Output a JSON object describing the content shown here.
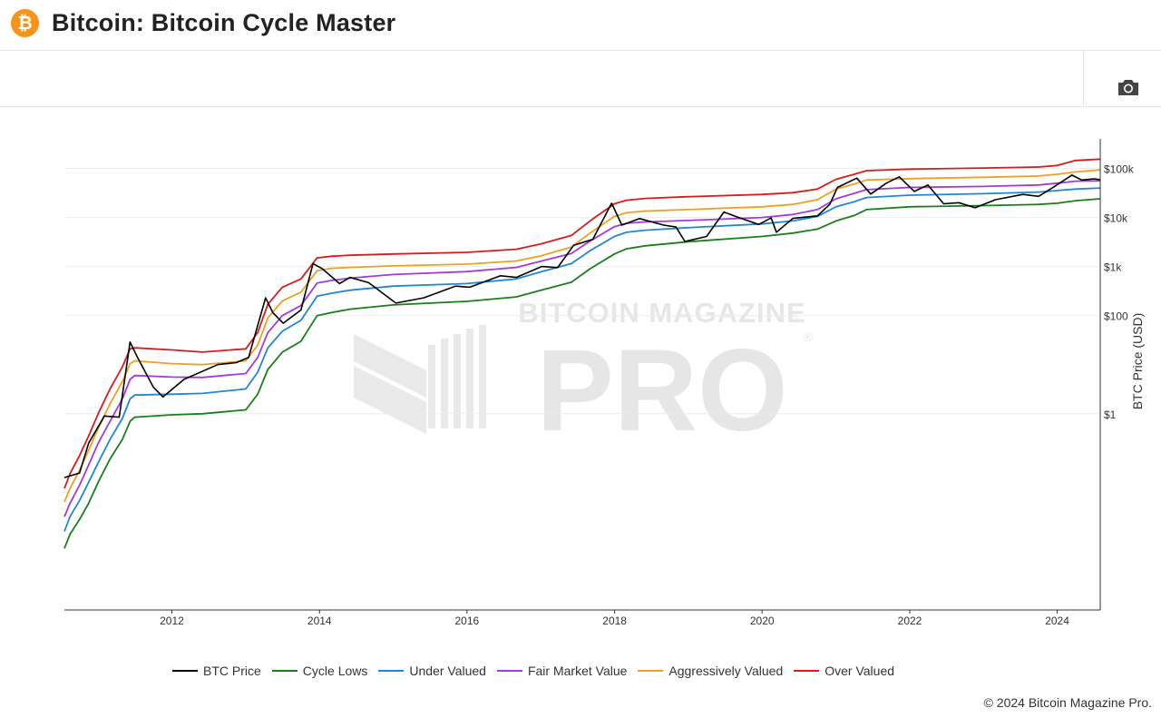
{
  "header": {
    "title": "Bitcoin: Bitcoin Cycle Master",
    "logo_symbol": "₿",
    "logo_icon": "bitcoin-icon"
  },
  "toolbar": {
    "camera_icon": "camera-icon"
  },
  "watermark": {
    "line1": "BITCOIN MAGAZINE",
    "line2": "PRO",
    "registered": "®"
  },
  "footer": {
    "copyright": "© 2024 Bitcoin Magazine Pro."
  },
  "colors": {
    "btc_price": "#000000",
    "cycle_lows": "#1a7f1a",
    "under_valued": "#1f87d6",
    "fair_market": "#a23cd6",
    "aggressive": "#f0a020",
    "over_valued": "#d81b1b",
    "brand": "#f7931a"
  },
  "chart_data": {
    "type": "line",
    "title": "Bitcoin: Bitcoin Cycle Master",
    "xlabel": "",
    "ylabel": "BTC Price (USD)",
    "y_scale": "log",
    "y_side": "right",
    "y_ticks": [
      1,
      100,
      1000,
      10000,
      100000
    ],
    "y_tick_labels": [
      "$1",
      "$100",
      "$1k",
      "$10k",
      "$100k"
    ],
    "x_ticks": [
      2012,
      2014,
      2016,
      2018,
      2020,
      2022,
      2024
    ],
    "x_tick_labels": [
      "2012",
      "2014",
      "2016",
      "2018",
      "2020",
      "2022",
      "2024"
    ],
    "xlim": [
      "2010-07-18",
      "2024-08-01"
    ],
    "ylim": [
      0.0001,
      400000
    ],
    "grid": true,
    "legend_position": "bottom",
    "series": [
      {
        "name": "BTC Price",
        "key": "btc_price",
        "x": [
          "2010-07-18",
          "2010-10-01",
          "2010-11-15",
          "2011-02-01",
          "2011-04-15",
          "2011-06-08",
          "2011-07-15",
          "2011-10-01",
          "2011-11-18",
          "2012-03-01",
          "2012-08-15",
          "2012-11-15",
          "2013-01-15",
          "2013-04-09",
          "2013-05-15",
          "2013-07-05",
          "2013-10-01",
          "2013-11-30",
          "2014-01-15",
          "2014-04-10",
          "2014-06-01",
          "2014-09-01",
          "2015-01-14",
          "2015-06-01",
          "2015-11-05",
          "2016-01-15",
          "2016-06-15",
          "2016-09-01",
          "2017-01-05",
          "2017-03-25",
          "2017-06-12",
          "2017-09-15",
          "2017-12-17",
          "2018-02-06",
          "2018-05-05",
          "2018-09-01",
          "2018-11-01",
          "2018-12-15",
          "2019-04-01",
          "2019-06-26",
          "2019-09-01",
          "2019-12-15",
          "2020-02-15",
          "2020-03-12",
          "2020-06-01",
          "2020-10-01",
          "2020-12-01",
          "2021-01-08",
          "2021-04-14",
          "2021-06-22",
          "2021-09-07",
          "2021-11-10",
          "2022-01-24",
          "2022-04-01",
          "2022-06-18",
          "2022-09-01",
          "2022-11-21",
          "2023-03-01",
          "2023-07-15",
          "2023-10-01",
          "2023-12-15",
          "2024-03-14",
          "2024-05-01",
          "2024-07-01",
          "2024-08-01"
        ],
        "values": [
          0.05,
          0.062,
          0.25,
          0.9,
          0.85,
          29,
          14,
          3.5,
          2.2,
          5,
          10,
          11,
          14,
          230,
          115,
          70,
          130,
          1150,
          900,
          450,
          600,
          470,
          180,
          230,
          400,
          380,
          650,
          600,
          1000,
          950,
          2700,
          3600,
          19500,
          7000,
          9500,
          7000,
          6400,
          3250,
          4100,
          12900,
          10200,
          7200,
          9800,
          5000,
          9600,
          10800,
          18500,
          41000,
          63500,
          30000,
          50000,
          67500,
          34000,
          46000,
          19000,
          20000,
          15800,
          23000,
          29500,
          27000,
          42000,
          73000,
          58000,
          61000,
          59000
        ]
      },
      {
        "name": "Cycle Lows",
        "key": "cycle_lows",
        "x": [
          "2010-07-18",
          "2010-08-15",
          "2010-10-01",
          "2010-11-15",
          "2011-01-01",
          "2011-03-01",
          "2011-05-01",
          "2011-06-08",
          "2011-07-01",
          "2012-01-01",
          "2012-06-01",
          "2013-01-01",
          "2013-03-01",
          "2013-04-20",
          "2013-07-01",
          "2013-10-01",
          "2013-12-20",
          "2014-03-01",
          "2014-06-01",
          "2015-01-01",
          "2016-01-01",
          "2016-09-01",
          "2017-01-01",
          "2017-06-01",
          "2017-09-01",
          "2017-12-31",
          "2018-03-01",
          "2018-06-01",
          "2019-01-01",
          "2020-01-01",
          "2020-06-01",
          "2020-10-01",
          "2021-01-01",
          "2021-04-01",
          "2021-06-01",
          "2022-01-01",
          "2023-01-01",
          "2023-10-01",
          "2024-01-01",
          "2024-04-01",
          "2024-08-01"
        ],
        "values": [
          0.0018,
          0.0035,
          0.007,
          0.015,
          0.04,
          0.12,
          0.3,
          0.7,
          0.85,
          0.95,
          1.0,
          1.2,
          2.5,
          8,
          18,
          30,
          100,
          115,
          135,
          165,
          195,
          240,
          330,
          480,
          900,
          1800,
          2300,
          2650,
          3200,
          4100,
          4800,
          5800,
          8500,
          11000,
          14500,
          16500,
          17500,
          18500,
          19500,
          22000,
          24000
        ]
      },
      {
        "name": "Under Valued",
        "key": "under_valued",
        "x": [
          "2010-07-18",
          "2010-08-15",
          "2010-10-01",
          "2010-11-15",
          "2011-01-01",
          "2011-03-01",
          "2011-05-01",
          "2011-06-08",
          "2011-07-01",
          "2012-01-01",
          "2012-06-01",
          "2013-01-01",
          "2013-03-01",
          "2013-04-20",
          "2013-07-01",
          "2013-10-01",
          "2013-12-20",
          "2014-03-01",
          "2014-06-01",
          "2015-01-01",
          "2016-01-01",
          "2016-09-01",
          "2017-01-01",
          "2017-06-01",
          "2017-09-01",
          "2017-12-31",
          "2018-03-01",
          "2018-06-01",
          "2019-01-01",
          "2020-01-01",
          "2020-06-01",
          "2020-10-01",
          "2021-01-01",
          "2021-04-01",
          "2021-06-01",
          "2022-01-01",
          "2023-01-01",
          "2023-10-01",
          "2024-01-01",
          "2024-04-01",
          "2024-08-01"
        ],
        "values": [
          0.004,
          0.008,
          0.017,
          0.04,
          0.1,
          0.3,
          0.8,
          2.0,
          2.4,
          2.5,
          2.6,
          3.2,
          7,
          22,
          48,
          80,
          250,
          285,
          330,
          400,
          450,
          560,
          780,
          1150,
          2100,
          4100,
          5000,
          5500,
          6200,
          7400,
          8500,
          10500,
          16500,
          21000,
          25500,
          28500,
          30500,
          33000,
          35500,
          38000,
          40000
        ]
      },
      {
        "name": "Fair Market Value",
        "key": "fair_market",
        "x": [
          "2010-07-18",
          "2010-08-15",
          "2010-10-01",
          "2010-11-15",
          "2011-01-01",
          "2011-03-01",
          "2011-05-01",
          "2011-06-08",
          "2011-07-01",
          "2012-01-01",
          "2012-06-01",
          "2013-01-01",
          "2013-03-01",
          "2013-04-20",
          "2013-07-01",
          "2013-10-01",
          "2013-12-20",
          "2014-03-01",
          "2014-06-01",
          "2015-01-01",
          "2016-01-01",
          "2016-09-01",
          "2017-01-01",
          "2017-06-01",
          "2017-09-01",
          "2017-12-31",
          "2018-03-01",
          "2018-06-01",
          "2019-01-01",
          "2020-01-01",
          "2020-06-01",
          "2020-10-01",
          "2021-01-01",
          "2021-04-01",
          "2021-06-01",
          "2022-01-01",
          "2023-01-01",
          "2023-10-01",
          "2024-01-01",
          "2024-04-01",
          "2024-08-01"
        ],
        "values": [
          0.008,
          0.015,
          0.035,
          0.09,
          0.25,
          0.7,
          2.0,
          5.0,
          6.0,
          5.6,
          5.5,
          6.6,
          14,
          45,
          100,
          160,
          460,
          520,
          580,
          690,
          790,
          960,
          1280,
          1850,
          3300,
          6500,
          7600,
          8100,
          8700,
          10000,
          11500,
          14500,
          24000,
          31000,
          37000,
          41000,
          43000,
          46000,
          50000,
          55000,
          56000
        ]
      },
      {
        "name": "Aggressively Valued",
        "key": "aggressive",
        "x": [
          "2010-07-18",
          "2010-08-15",
          "2010-10-01",
          "2010-11-15",
          "2011-01-01",
          "2011-03-01",
          "2011-05-01",
          "2011-06-08",
          "2011-07-01",
          "2012-01-01",
          "2012-06-01",
          "2013-01-01",
          "2013-03-01",
          "2013-04-20",
          "2013-07-01",
          "2013-10-01",
          "2013-12-20",
          "2014-03-01",
          "2014-06-01",
          "2015-01-01",
          "2016-01-01",
          "2016-09-01",
          "2017-01-01",
          "2017-06-01",
          "2017-09-01",
          "2017-12-31",
          "2018-03-01",
          "2018-06-01",
          "2019-01-01",
          "2020-01-01",
          "2020-06-01",
          "2020-10-01",
          "2021-01-01",
          "2021-04-01",
          "2021-06-01",
          "2022-01-01",
          "2023-01-01",
          "2023-10-01",
          "2024-01-01",
          "2024-04-01",
          "2024-08-01"
        ],
        "values": [
          0.016,
          0.03,
          0.07,
          0.18,
          0.5,
          1.6,
          4.5,
          10.5,
          12,
          10.5,
          10,
          12,
          25,
          90,
          200,
          300,
          820,
          920,
          960,
          1030,
          1120,
          1300,
          1650,
          2500,
          4800,
          10500,
          12500,
          13500,
          14500,
          16500,
          18500,
          23000,
          38000,
          48000,
          58000,
          62000,
          66000,
          70000,
          76000,
          85000,
          93000
        ]
      },
      {
        "name": "Over Valued",
        "key": "over_valued",
        "x": [
          "2010-07-18",
          "2010-08-15",
          "2010-10-01",
          "2010-11-15",
          "2011-01-01",
          "2011-03-01",
          "2011-05-01",
          "2011-06-08",
          "2011-07-01",
          "2012-01-01",
          "2012-06-01",
          "2013-01-01",
          "2013-03-01",
          "2013-04-20",
          "2013-07-01",
          "2013-10-01",
          "2013-12-20",
          "2014-03-01",
          "2014-06-01",
          "2015-01-01",
          "2016-01-01",
          "2016-09-01",
          "2017-01-01",
          "2017-06-01",
          "2017-09-01",
          "2017-12-31",
          "2018-03-01",
          "2018-06-01",
          "2019-01-01",
          "2020-01-01",
          "2020-06-01",
          "2020-10-01",
          "2021-01-01",
          "2021-04-01",
          "2021-06-01",
          "2022-01-01",
          "2023-01-01",
          "2023-10-01",
          "2024-01-01",
          "2024-04-01",
          "2024-08-01"
        ],
        "values": [
          0.03,
          0.06,
          0.14,
          0.35,
          1.0,
          3.2,
          9,
          21,
          22,
          20,
          18,
          21,
          45,
          170,
          380,
          560,
          1500,
          1620,
          1700,
          1800,
          1950,
          2250,
          2900,
          4300,
          8500,
          19000,
          22500,
          24500,
          26500,
          29500,
          32000,
          38000,
          60000,
          76000,
          90000,
          97000,
          102000,
          107000,
          115000,
          145000,
          155000
        ]
      }
    ]
  }
}
